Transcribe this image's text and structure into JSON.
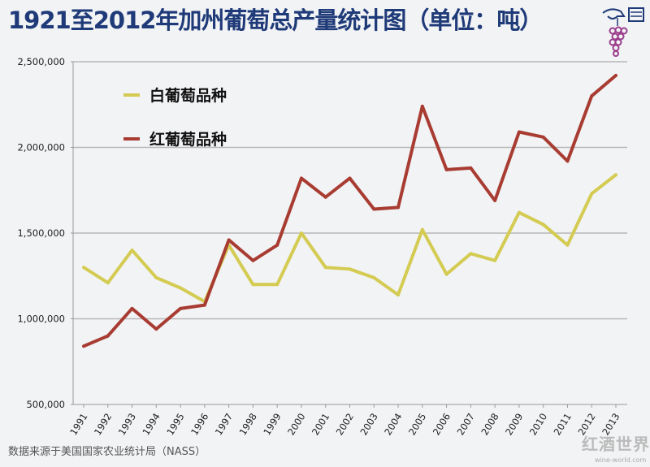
{
  "title": "1921至2012年加州葡萄总产量统计图（单位：吨）",
  "source": "数据来源于美国国家农业统计局（NASS）",
  "brand": {
    "name": "红酒世界",
    "url_text": "wine-world.com"
  },
  "chart_data": {
    "type": "line",
    "title": "1921至2012年加州葡萄总产量统计图（单位：吨）",
    "x": [
      "1991",
      "1992",
      "1993",
      "1994",
      "1995",
      "1996",
      "1997",
      "1998",
      "1999",
      "2000",
      "2001",
      "2002",
      "2003",
      "2004",
      "2005",
      "2006",
      "2007",
      "2008",
      "2009",
      "2010",
      "2011",
      "2012",
      "2013"
    ],
    "ylim": [
      500000,
      2500000
    ],
    "yticks": [
      500000,
      1000000,
      1500000,
      2000000,
      2500000
    ],
    "ytick_labels": [
      "500,000",
      "1,000,000",
      "1,500,000",
      "2,000,000",
      "2,500,000"
    ],
    "grid": true,
    "legend_position": "top-left",
    "series": [
      {
        "name": "白葡萄品种",
        "color": "#d4cb52",
        "values": [
          1300000,
          1210000,
          1400000,
          1240000,
          1180000,
          1100000,
          1430000,
          1200000,
          1200000,
          1500000,
          1300000,
          1290000,
          1240000,
          1140000,
          1520000,
          1260000,
          1380000,
          1340000,
          1620000,
          1550000,
          1430000,
          1730000,
          1840000
        ]
      },
      {
        "name": "红葡萄品种",
        "color": "#a83c32",
        "values": [
          840000,
          900000,
          1060000,
          940000,
          1060000,
          1080000,
          1460000,
          1340000,
          1430000,
          1820000,
          1710000,
          1820000,
          1640000,
          1650000,
          2240000,
          1870000,
          1880000,
          1690000,
          2090000,
          2060000,
          1920000,
          2300000,
          2420000
        ]
      }
    ]
  }
}
